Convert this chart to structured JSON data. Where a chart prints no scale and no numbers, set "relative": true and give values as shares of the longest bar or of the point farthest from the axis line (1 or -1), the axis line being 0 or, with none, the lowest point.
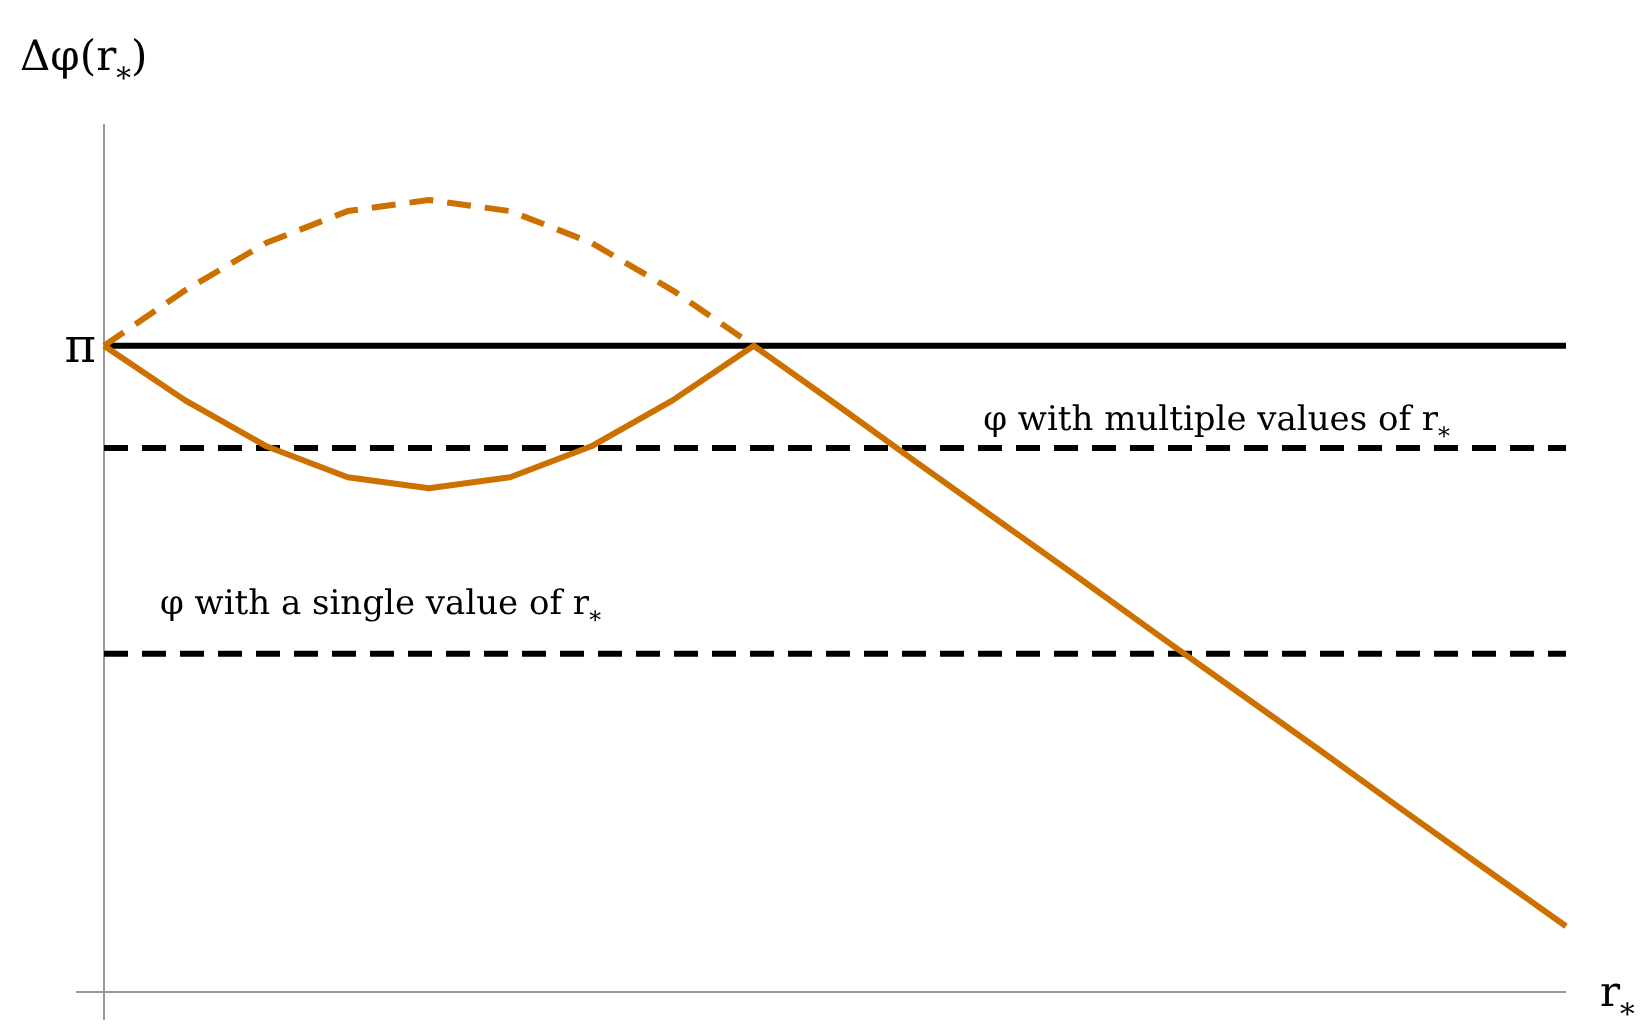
{
  "chart_data": {
    "type": "line",
    "relative": true,
    "xlabel": "r$_{*}$",
    "ylabel": "Δφ(r$_{*}$)",
    "categories": [
      null,
      null,
      null,
      null,
      null,
      null,
      null,
      null,
      null,
      null,
      null,
      null,
      null,
      null,
      null,
      null,
      null,
      null,
      null
    ],
    "series": [
      {
        "color": "#cc7000",
        "line_style": "solid",
        "values": [
          0.816,
          0.747,
          0.689,
          0.65,
          0.636,
          0.65,
          0.689,
          0.747,
          0.816,
          0.743,
          0.669,
          0.596,
          0.523,
          0.449,
          0.376,
          0.303,
          0.229,
          0.156,
          0.083
        ]
      },
      {
        "color": "#cc7000",
        "line_style": "dashed",
        "values": [
          0.816,
          0.886,
          0.946,
          0.986,
          1.0,
          0.986,
          0.946,
          0.886,
          0.816,
          null,
          null,
          null,
          null,
          null,
          null,
          null,
          null,
          null,
          null
        ]
      }
    ],
    "ref_lines": [
      {
        "axis": "y",
        "value": 0.816,
        "label": "π",
        "color": "#000000",
        "line_style": "solid"
      },
      {
        "axis": "y",
        "value": 0.687,
        "color": "#000000",
        "line_style": "dashed"
      },
      {
        "axis": "y",
        "value": 0.427,
        "color": "#000000",
        "line_style": "dashed"
      }
    ],
    "annotations": [
      {
        "text": "φ with multiple values of r$_{*}$",
        "y": 0.687
      },
      {
        "text": "φ with a single value of r$_{*}$",
        "y": 0.427
      }
    ]
  }
}
